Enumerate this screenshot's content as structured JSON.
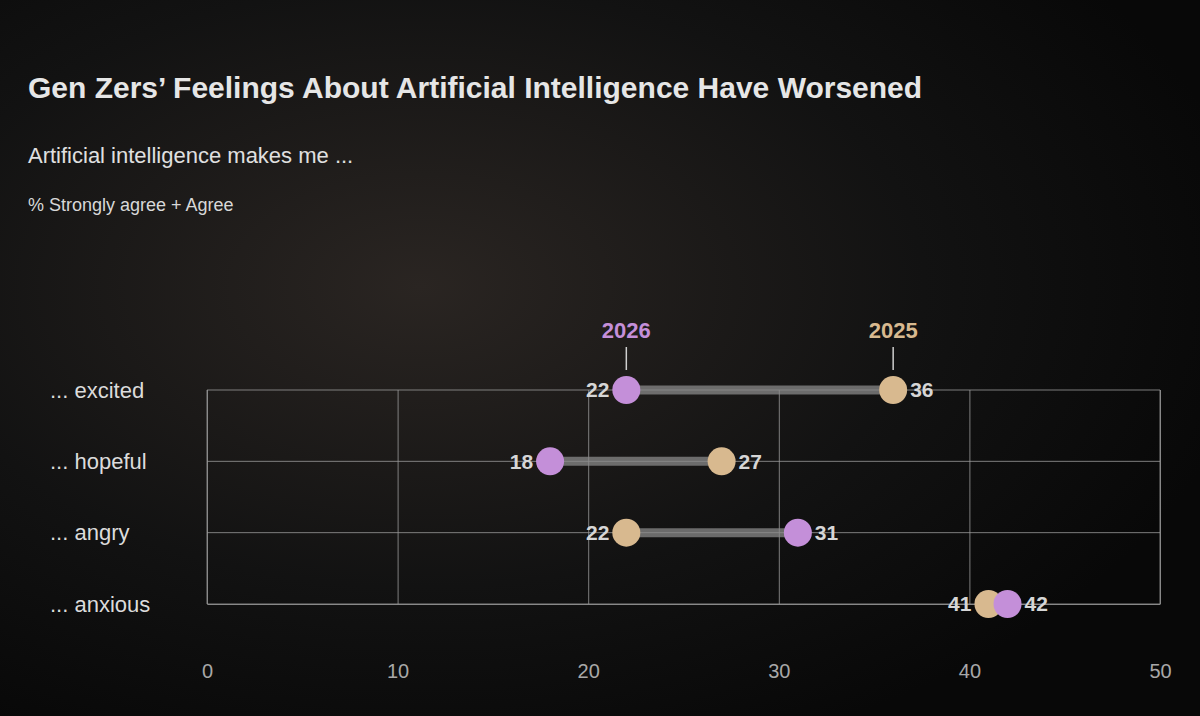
{
  "chart_data": {
    "type": "dumbbell",
    "title": "Gen Zers’ Feelings About Artificial Intelligence Have Worsened",
    "subtitle": "Artificial intelligence makes me ...",
    "annotation": "% Strongly agree + Agree",
    "categories": [
      "... excited",
      "... hopeful",
      "... angry",
      "... anxious"
    ],
    "series": [
      {
        "name": "2026",
        "color": "#c48fd9",
        "values": [
          22,
          18,
          31,
          42
        ]
      },
      {
        "name": "2025",
        "color": "#d8b98f",
        "values": [
          36,
          27,
          22,
          41
        ]
      }
    ],
    "xlim": [
      0,
      50
    ],
    "xticks": [
      0,
      10,
      20,
      30,
      40,
      50
    ],
    "orientation": "horizontal",
    "grid": true,
    "data_labels": true,
    "legend": "top"
  }
}
